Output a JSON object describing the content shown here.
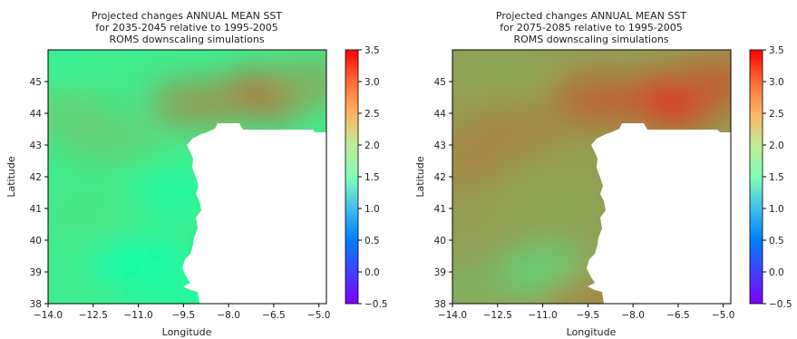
{
  "chart_data": [
    {
      "type": "heatmap",
      "title_lines": [
        "Projected changes ANNUAL MEAN SST",
        "for 2035-2045 relative to 1995-2005",
        "ROMS downscaling simulations"
      ],
      "xlabel": "Longitude",
      "ylabel": "Latitude",
      "xlim": [
        -14.0,
        -4.75
      ],
      "ylim": [
        38.0,
        46.0
      ],
      "x_ticks": [
        -14.0,
        -12.5,
        -11.0,
        -9.5,
        -8.0,
        -6.5,
        -5.0
      ],
      "x_tick_labels": [
        "−14.0",
        "−12.5",
        "−11.0",
        "−9.5",
        "−8.0",
        "−6.5",
        "−5.0"
      ],
      "y_ticks": [
        38,
        39,
        40,
        41,
        42,
        43,
        44,
        45
      ],
      "y_tick_labels": [
        "38",
        "39",
        "40",
        "41",
        "42",
        "43",
        "44",
        "45"
      ],
      "colorbar": {
        "min": -0.5,
        "max": 3.5,
        "ticks": [
          -0.5,
          0.0,
          0.5,
          1.0,
          1.5,
          2.0,
          2.5,
          3.0,
          3.5
        ],
        "tick_labels": [
          "−0.5",
          "0.0",
          "0.5",
          "1.0",
          "1.5",
          "2.0",
          "2.5",
          "3.0",
          "3.5"
        ],
        "colormap": "rainbow"
      },
      "field_hotspots": [
        {
          "lon": -6.7,
          "lat": 44.6,
          "value": 3.0
        },
        {
          "lon": -9.0,
          "lat": 44.3,
          "value": 2.7
        },
        {
          "lon": -5.0,
          "lat": 45.0,
          "value": 2.5
        },
        {
          "lon": -12.0,
          "lat": 43.2,
          "value": 2.3
        },
        {
          "lon": -13.5,
          "lat": 44.0,
          "value": 2.3
        },
        {
          "lon": -14.0,
          "lat": 45.5,
          "value": 1.9
        },
        {
          "lon": -11.0,
          "lat": 39.3,
          "value": 1.6
        },
        {
          "lon": -10.0,
          "lat": 41.5,
          "value": 1.8
        },
        {
          "lon": -12.5,
          "lat": 40.8,
          "value": 2.1
        },
        {
          "lon": -13.8,
          "lat": 38.5,
          "value": 2.0
        },
        {
          "lon": -9.5,
          "lat": 38.3,
          "value": 1.8
        }
      ],
      "field_base_value": 2.0
    },
    {
      "type": "heatmap",
      "title_lines": [
        "Projected changes ANNUAL MEAN SST",
        "for 2075-2085 relative to 1995-2005",
        "ROMS downscaling simulations"
      ],
      "xlabel": "Longitude",
      "ylabel": "Latitude",
      "xlim": [
        -14.0,
        -4.75
      ],
      "ylim": [
        38.0,
        46.0
      ],
      "x_ticks": [
        -14.0,
        -12.5,
        -11.0,
        -9.5,
        -8.0,
        -6.5,
        -5.0
      ],
      "x_tick_labels": [
        "−14.0",
        "−12.5",
        "−11.0",
        "−9.5",
        "−8.0",
        "−6.5",
        "−5.0"
      ],
      "y_ticks": [
        38,
        39,
        40,
        41,
        42,
        43,
        44,
        45
      ],
      "y_tick_labels": [
        "38",
        "39",
        "40",
        "41",
        "42",
        "43",
        "44",
        "45"
      ],
      "colorbar": {
        "min": -0.5,
        "max": 3.5,
        "ticks": [
          -0.5,
          0.0,
          0.5,
          1.0,
          1.5,
          2.0,
          2.5,
          3.0,
          3.5
        ],
        "tick_labels": [
          "−0.5",
          "0.0",
          "0.5",
          "1.0",
          "1.5",
          "2.0",
          "2.5",
          "3.0",
          "3.5"
        ],
        "colormap": "rainbow"
      },
      "field_hotspots": [
        {
          "lon": -6.7,
          "lat": 44.4,
          "value": 3.3
        },
        {
          "lon": -9.0,
          "lat": 44.4,
          "value": 3.0
        },
        {
          "lon": -5.0,
          "lat": 45.0,
          "value": 3.0
        },
        {
          "lon": -12.0,
          "lat": 43.5,
          "value": 2.8
        },
        {
          "lon": -13.8,
          "lat": 42.5,
          "value": 2.8
        },
        {
          "lon": -10.5,
          "lat": 41.0,
          "value": 2.6
        },
        {
          "lon": -11.0,
          "lat": 39.0,
          "value": 2.2
        },
        {
          "lon": -13.5,
          "lat": 38.5,
          "value": 2.5
        },
        {
          "lon": -9.3,
          "lat": 38.2,
          "value": 2.8
        },
        {
          "lon": -12.5,
          "lat": 45.5,
          "value": 2.6
        }
      ],
      "field_base_value": 2.65
    }
  ]
}
